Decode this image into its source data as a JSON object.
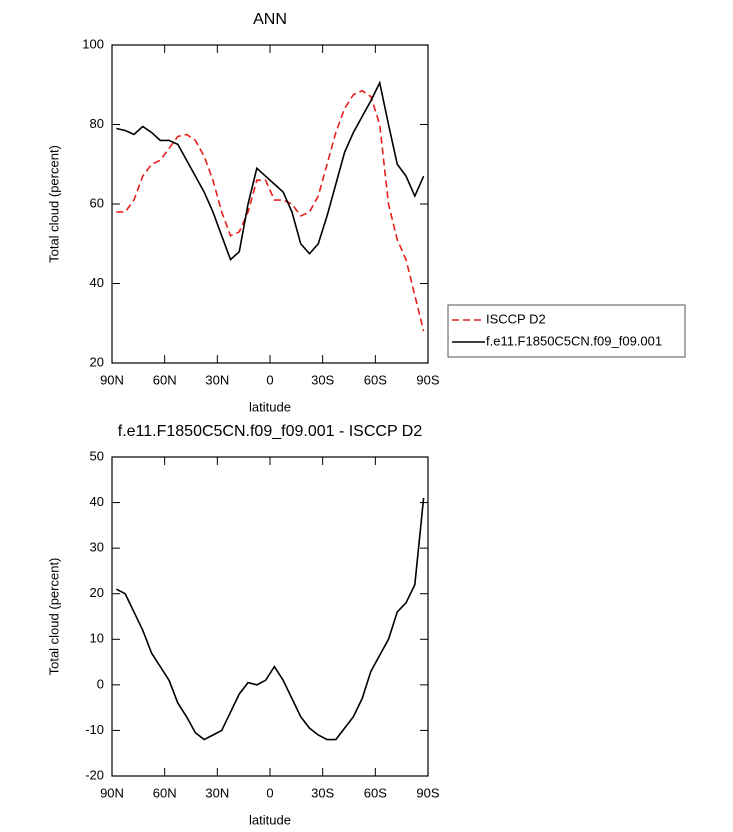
{
  "chart_data": [
    {
      "type": "line",
      "title": "ANN",
      "x_label": "latitude",
      "y_label": "Total cloud (percent)",
      "x": [
        87.5,
        82.5,
        77.5,
        72.5,
        67.5,
        62.5,
        57.5,
        52.5,
        47.5,
        42.5,
        37.5,
        32.5,
        27.5,
        22.5,
        17.5,
        12.5,
        7.5,
        2.5,
        -2.5,
        -7.5,
        -12.5,
        -17.5,
        -22.5,
        -27.5,
        -32.5,
        -37.5,
        -42.5,
        -47.5,
        -52.5,
        -57.5,
        -62.5,
        -67.5,
        -72.5,
        -77.5,
        -82.5,
        -87.5
      ],
      "series": [
        {
          "name": "ISCCP D2",
          "color": "#e8201c",
          "dash": true,
          "values": [
            58,
            58,
            61,
            67,
            70,
            71,
            74,
            77,
            77.5,
            76,
            72,
            66,
            58,
            52,
            53,
            58,
            66,
            66,
            61,
            61,
            60,
            57,
            58,
            62,
            70,
            78,
            84,
            87.5,
            88.5,
            87,
            80,
            60,
            51,
            46,
            37,
            28
          ]
        },
        {
          "name": "f.e11.F1850C5CN.f09_f09.001",
          "color": "#000000",
          "dash": false,
          "values": [
            79,
            78.5,
            77.5,
            79.5,
            78,
            76,
            76,
            75,
            71,
            67,
            63,
            58,
            52,
            46,
            48,
            60,
            69,
            67,
            65,
            63,
            58,
            50,
            47.5,
            50,
            57,
            65,
            73,
            78,
            82,
            86,
            90.5,
            80,
            70,
            67,
            62,
            67
          ]
        }
      ],
      "xlim": [
        90,
        -90
      ],
      "xticks": [
        {
          "value": 90,
          "label": "90N"
        },
        {
          "value": 60,
          "label": "60N"
        },
        {
          "value": 30,
          "label": "30N"
        },
        0,
        {
          "value": -30,
          "label": "30S"
        },
        {
          "value": -60,
          "label": "60S"
        },
        {
          "value": -90,
          "label": "90S"
        }
      ],
      "ylim": [
        20,
        100
      ],
      "yticks": [
        20,
        40,
        60,
        80,
        100
      ],
      "legend": "right"
    },
    {
      "type": "line",
      "title": "f.e11.F1850C5CN.f09_f09.001 - ISCCP D2",
      "x_label": "latitude",
      "y_label": "Total cloud (percent)",
      "x": [
        87.5,
        82.5,
        77.5,
        72.5,
        67.5,
        62.5,
        57.5,
        52.5,
        47.5,
        42.5,
        37.5,
        32.5,
        27.5,
        22.5,
        17.5,
        12.5,
        7.5,
        2.5,
        -2.5,
        -7.5,
        -12.5,
        -17.5,
        -22.5,
        -27.5,
        -32.5,
        -37.5,
        -42.5,
        -47.5,
        -52.5,
        -57.5,
        -62.5,
        -67.5,
        -72.5,
        -77.5,
        -82.5,
        -87.5
      ],
      "series": [
        {
          "color": "#000000",
          "dash": false,
          "values": [
            21,
            20,
            16,
            12,
            7,
            4,
            1,
            -4,
            -7,
            -10.5,
            -12,
            -11,
            -10,
            -6,
            -2,
            0.5,
            0,
            1,
            4,
            1,
            -3,
            -7,
            -9.5,
            -11,
            -12,
            -12,
            -9.5,
            -7,
            -3,
            3,
            6.5,
            10,
            16,
            18,
            22,
            41
          ]
        }
      ],
      "xlim": [
        90,
        -90
      ],
      "xticks": [
        {
          "value": 90,
          "label": "90N"
        },
        {
          "value": 60,
          "label": "60N"
        },
        {
          "value": 30,
          "label": "30N"
        },
        0,
        {
          "value": -30,
          "label": "30S"
        },
        {
          "value": -60,
          "label": "60S"
        },
        {
          "value": -90,
          "label": "90S"
        }
      ],
      "ylim": [
        -20,
        50
      ],
      "yticks": [
        -20,
        -10,
        0,
        10,
        20,
        30,
        40,
        50
      ]
    }
  ]
}
